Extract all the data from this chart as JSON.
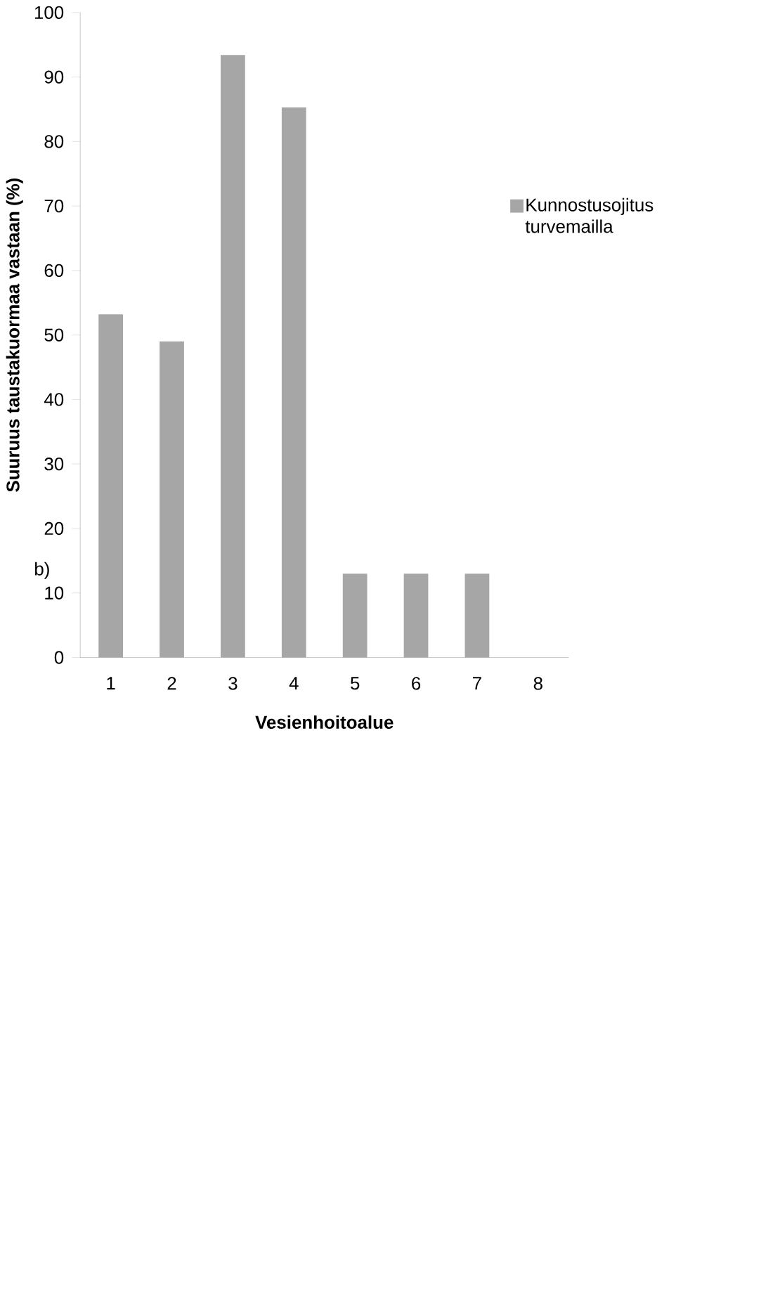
{
  "chart_data": {
    "type": "bar",
    "xlabel": "Vesienhoitoalue",
    "ylabel": "Suuruus taustakuormaa vastaan (%)",
    "annotations": [
      "b)"
    ],
    "categories": [
      "1",
      "2",
      "3",
      "4",
      "5",
      "6",
      "7",
      "8"
    ],
    "series": [
      {
        "name": "Kunnostusojitus turvemailla",
        "color": "#a6a6a6",
        "values": [
          53.2,
          49.0,
          93.4,
          85.3,
          13.0,
          13.0,
          13.0,
          0
        ]
      }
    ],
    "ylim": [
      0,
      100
    ],
    "yticks": [
      0,
      10,
      20,
      30,
      40,
      50,
      60,
      70,
      80,
      90,
      100
    ],
    "grid": false,
    "legend": "right"
  }
}
